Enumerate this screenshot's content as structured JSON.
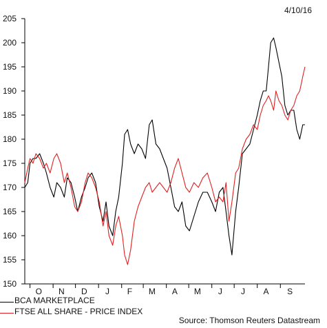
{
  "header": {
    "date": "4/10/16"
  },
  "source": "Source: Thomson Reuters Datastream",
  "chart_data": {
    "type": "line",
    "title": "",
    "xlabel": "",
    "ylabel": "",
    "ylim": [
      150,
      205
    ],
    "yticks": [
      150,
      155,
      160,
      165,
      170,
      175,
      180,
      185,
      190,
      195,
      200,
      205
    ],
    "x_range": [
      "2015-10-01",
      "2016-10-04"
    ],
    "x_tick_labels": [
      "O",
      "N",
      "D",
      "J",
      "F",
      "M",
      "A",
      "M",
      "J",
      "J",
      "A",
      "S"
    ],
    "x_tick_dates": [
      "2015-10-01",
      "2015-11-01",
      "2015-12-01",
      "2016-01-01",
      "2016-02-01",
      "2016-03-01",
      "2016-04-01",
      "2016-05-01",
      "2016-06-01",
      "2016-07-01",
      "2016-08-01",
      "2016-09-01"
    ],
    "grid": false,
    "legend_position": "bottom-left",
    "series": [
      {
        "name": "BCA MARKETPLACE",
        "color": "#000000",
        "points": [
          [
            "2015-09-24",
            170
          ],
          [
            "2015-09-28",
            171
          ],
          [
            "2015-10-01",
            175
          ],
          [
            "2015-10-05",
            176
          ],
          [
            "2015-10-09",
            176
          ],
          [
            "2015-10-14",
            177
          ],
          [
            "2015-10-19",
            175
          ],
          [
            "2015-10-23",
            173
          ],
          [
            "2015-10-28",
            170
          ],
          [
            "2015-11-02",
            168
          ],
          [
            "2015-11-06",
            171
          ],
          [
            "2015-11-11",
            170
          ],
          [
            "2015-11-16",
            168
          ],
          [
            "2015-11-20",
            172
          ],
          [
            "2015-11-25",
            171
          ],
          [
            "2015-11-30",
            168
          ],
          [
            "2015-12-04",
            165
          ],
          [
            "2015-12-09",
            168
          ],
          [
            "2015-12-14",
            170
          ],
          [
            "2015-12-18",
            172
          ],
          [
            "2015-12-23",
            173
          ],
          [
            "2015-12-28",
            171
          ],
          [
            "2016-01-02",
            166
          ],
          [
            "2016-01-07",
            163
          ],
          [
            "2016-01-11",
            167
          ],
          [
            "2016-01-15",
            162
          ],
          [
            "2016-01-20",
            160
          ],
          [
            "2016-01-24",
            165
          ],
          [
            "2016-01-28",
            168
          ],
          [
            "2016-02-02",
            175
          ],
          [
            "2016-02-05",
            181
          ],
          [
            "2016-02-09",
            182
          ],
          [
            "2016-02-13",
            179
          ],
          [
            "2016-02-18",
            177
          ],
          [
            "2016-02-23",
            179
          ],
          [
            "2016-02-28",
            178
          ],
          [
            "2016-03-04",
            176
          ],
          [
            "2016-03-09",
            183
          ],
          [
            "2016-03-13",
            184
          ],
          [
            "2016-03-18",
            179
          ],
          [
            "2016-03-23",
            178
          ],
          [
            "2016-03-28",
            176
          ],
          [
            "2016-04-02",
            174
          ],
          [
            "2016-04-07",
            170
          ],
          [
            "2016-04-12",
            166
          ],
          [
            "2016-04-17",
            165
          ],
          [
            "2016-04-22",
            167
          ],
          [
            "2016-04-27",
            162
          ],
          [
            "2016-05-02",
            161
          ],
          [
            "2016-05-08",
            164
          ],
          [
            "2016-05-14",
            167
          ],
          [
            "2016-05-20",
            169
          ],
          [
            "2016-05-26",
            169
          ],
          [
            "2016-06-01",
            167
          ],
          [
            "2016-06-06",
            165
          ],
          [
            "2016-06-11",
            169
          ],
          [
            "2016-06-16",
            170
          ],
          [
            "2016-06-20",
            165
          ],
          [
            "2016-06-24",
            160
          ],
          [
            "2016-06-28",
            156
          ],
          [
            "2016-07-03",
            165
          ],
          [
            "2016-07-07",
            170
          ],
          [
            "2016-07-12",
            177
          ],
          [
            "2016-07-17",
            178
          ],
          [
            "2016-07-22",
            179
          ],
          [
            "2016-07-27",
            182
          ],
          [
            "2016-08-01",
            185
          ],
          [
            "2016-08-05",
            188
          ],
          [
            "2016-08-09",
            190
          ],
          [
            "2016-08-13",
            190
          ],
          [
            "2016-08-16",
            195
          ],
          [
            "2016-08-19",
            200
          ],
          [
            "2016-08-23",
            201
          ],
          [
            "2016-08-26",
            199
          ],
          [
            "2016-08-30",
            196
          ],
          [
            "2016-09-03",
            193
          ],
          [
            "2016-09-07",
            187
          ],
          [
            "2016-09-11",
            185
          ],
          [
            "2016-09-15",
            186
          ],
          [
            "2016-09-19",
            186
          ],
          [
            "2016-09-23",
            182
          ],
          [
            "2016-09-27",
            180
          ],
          [
            "2016-10-01",
            183
          ],
          [
            "2016-10-04",
            183
          ]
        ]
      },
      {
        "name": "FTSE ALL SHARE - PRICE INDEX",
        "color": "#e02020",
        "points": [
          [
            "2015-09-24",
            171
          ],
          [
            "2015-09-28",
            174
          ],
          [
            "2015-10-01",
            176
          ],
          [
            "2015-10-05",
            175
          ],
          [
            "2015-10-09",
            177
          ],
          [
            "2015-10-14",
            176
          ],
          [
            "2015-10-19",
            174
          ],
          [
            "2015-10-23",
            175
          ],
          [
            "2015-10-28",
            173
          ],
          [
            "2015-11-02",
            176
          ],
          [
            "2015-11-06",
            177
          ],
          [
            "2015-11-11",
            175
          ],
          [
            "2015-11-16",
            171
          ],
          [
            "2015-11-20",
            173
          ],
          [
            "2015-11-25",
            170
          ],
          [
            "2015-11-30",
            166
          ],
          [
            "2015-12-04",
            165
          ],
          [
            "2015-12-09",
            167
          ],
          [
            "2015-12-14",
            171
          ],
          [
            "2015-12-18",
            173
          ],
          [
            "2015-12-23",
            172
          ],
          [
            "2015-12-28",
            170
          ],
          [
            "2016-01-02",
            167
          ],
          [
            "2016-01-07",
            162
          ],
          [
            "2016-01-11",
            165
          ],
          [
            "2016-01-15",
            160
          ],
          [
            "2016-01-20",
            158
          ],
          [
            "2016-01-24",
            162
          ],
          [
            "2016-01-28",
            164
          ],
          [
            "2016-02-02",
            160
          ],
          [
            "2016-02-05",
            156
          ],
          [
            "2016-02-09",
            154
          ],
          [
            "2016-02-13",
            157
          ],
          [
            "2016-02-18",
            163
          ],
          [
            "2016-02-23",
            166
          ],
          [
            "2016-02-28",
            168
          ],
          [
            "2016-03-04",
            170
          ],
          [
            "2016-03-09",
            171
          ],
          [
            "2016-03-13",
            169
          ],
          [
            "2016-03-18",
            170
          ],
          [
            "2016-03-23",
            171
          ],
          [
            "2016-03-28",
            170
          ],
          [
            "2016-04-02",
            169
          ],
          [
            "2016-04-07",
            171
          ],
          [
            "2016-04-12",
            174
          ],
          [
            "2016-04-17",
            176
          ],
          [
            "2016-04-22",
            173
          ],
          [
            "2016-04-27",
            170
          ],
          [
            "2016-05-02",
            169
          ],
          [
            "2016-05-08",
            171
          ],
          [
            "2016-05-14",
            170
          ],
          [
            "2016-05-20",
            172
          ],
          [
            "2016-05-26",
            173
          ],
          [
            "2016-06-01",
            170
          ],
          [
            "2016-06-06",
            167
          ],
          [
            "2016-06-11",
            168
          ],
          [
            "2016-06-16",
            167
          ],
          [
            "2016-06-20",
            171
          ],
          [
            "2016-06-24",
            163
          ],
          [
            "2016-06-28",
            167
          ],
          [
            "2016-07-03",
            173
          ],
          [
            "2016-07-07",
            174
          ],
          [
            "2016-07-12",
            178
          ],
          [
            "2016-07-17",
            180
          ],
          [
            "2016-07-22",
            181
          ],
          [
            "2016-07-27",
            183
          ],
          [
            "2016-08-01",
            182
          ],
          [
            "2016-08-05",
            185
          ],
          [
            "2016-08-09",
            187
          ],
          [
            "2016-08-13",
            188
          ],
          [
            "2016-08-16",
            189
          ],
          [
            "2016-08-19",
            188
          ],
          [
            "2016-08-23",
            186
          ],
          [
            "2016-08-26",
            190
          ],
          [
            "2016-08-30",
            188
          ],
          [
            "2016-09-03",
            187
          ],
          [
            "2016-09-07",
            185
          ],
          [
            "2016-09-11",
            184
          ],
          [
            "2016-09-15",
            186
          ],
          [
            "2016-09-19",
            187
          ],
          [
            "2016-09-23",
            189
          ],
          [
            "2016-09-27",
            190
          ],
          [
            "2016-10-01",
            193
          ],
          [
            "2016-10-04",
            195
          ]
        ]
      }
    ]
  }
}
